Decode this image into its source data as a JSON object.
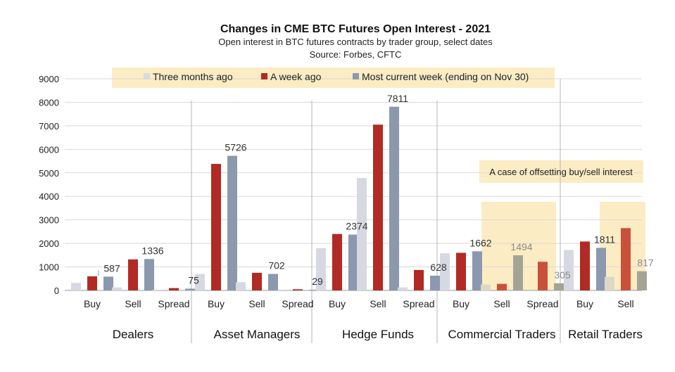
{
  "chart_data": {
    "type": "bar",
    "title": "Changes in CME BTC Futures Open Interest - 2021",
    "subtitle": "Open interest in BTC futures contracts by trader group, select dates",
    "source": "Source: Forbes, CFTC",
    "ylim": [
      0,
      9000
    ],
    "yticks": [
      0,
      1000,
      2000,
      3000,
      4000,
      5000,
      6000,
      7000,
      8000,
      9000
    ],
    "grid": true,
    "legend_position": "top",
    "series": [
      {
        "name": "Three months ago",
        "color": "#d6d9e2"
      },
      {
        "name": "A week ago",
        "color": "#b22a24"
      },
      {
        "name": "Most current week (ending on Nov 30)",
        "color": "#8c98ad"
      }
    ],
    "groups": [
      {
        "name": "Dealers",
        "bars": [
          {
            "category": "Buy",
            "values": [
              320,
              600,
              587
            ],
            "label": "587"
          },
          {
            "category": "Sell",
            "values": [
              130,
              1320,
              1336
            ],
            "label": "1336"
          },
          {
            "category": "Spread",
            "values": [
              30,
              100,
              75
            ],
            "label": "75"
          }
        ]
      },
      {
        "name": "Asset Managers",
        "bars": [
          {
            "category": "Buy",
            "values": [
              700,
              5380,
              5726
            ],
            "label": "5726"
          },
          {
            "category": "Sell",
            "values": [
              350,
              750,
              702
            ],
            "label": "702"
          },
          {
            "category": "Spread",
            "values": [
              5,
              50,
              29
            ],
            "label": "29"
          }
        ]
      },
      {
        "name": "Hedge Funds",
        "bars": [
          {
            "category": "Buy",
            "values": [
              1800,
              2400,
              2374
            ],
            "label": "2374"
          },
          {
            "category": "Sell",
            "values": [
              4780,
              7050,
              7811
            ],
            "label": "7811"
          },
          {
            "category": "Spread",
            "values": [
              130,
              870,
              628
            ],
            "label": "628"
          }
        ]
      },
      {
        "name": "Commercial Traders",
        "bars": [
          {
            "category": "Buy",
            "values": [
              1580,
              1600,
              1662
            ],
            "label": "1662"
          },
          {
            "category": "Sell",
            "values": [
              250,
              280,
              1494
            ],
            "label": "1494",
            "muted": true
          },
          {
            "category": "Spread",
            "values": [
              0,
              1220,
              305
            ],
            "label": "305",
            "muted": true
          }
        ]
      },
      {
        "name": "Retail Traders",
        "bars": [
          {
            "category": "Buy",
            "values": [
              1720,
              2080,
              1811
            ],
            "label": "1811"
          },
          {
            "category": "Sell",
            "values": [
              580,
              2650,
              817
            ],
            "label": "817",
            "muted": true
          }
        ]
      }
    ],
    "annotation": "A case of offsetting buy/sell interest"
  },
  "colors": {
    "highlight_box": "#fcecc4",
    "axis": "#999999",
    "grid": "#d9d9d9"
  }
}
